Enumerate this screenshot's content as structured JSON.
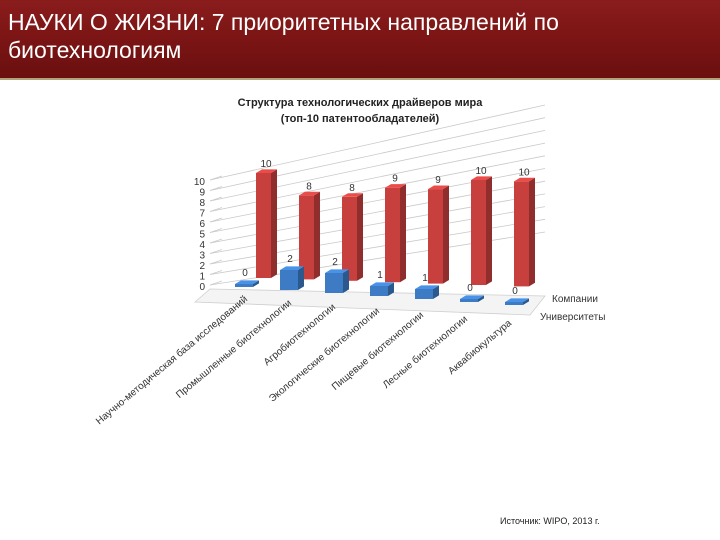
{
  "header": {
    "title": "НАУКИ О ЖИЗНИ: 7 приоритетных направлений по биотехнологиям"
  },
  "chart_title": {
    "line1": "Структура технологических драйверов мира",
    "line2": "(топ-10 патентообладателей)"
  },
  "source": "Источник: WIPO, 2013 г.",
  "colors": {
    "header_bg": "#7a1414",
    "companies": "#c8403e",
    "universities": "#3d7cc4"
  },
  "chart_data": {
    "type": "bar",
    "style": "3d-clustered",
    "categories": [
      "Научно-методическая база исследований",
      "Промышленные биотехнологии",
      "Агробиотехнологии",
      "Экологические биотехнологии",
      "Пищевые биотехнологии",
      "Лесные биотехнологии",
      "Аквабиокультура"
    ],
    "series": [
      {
        "name": "Компании",
        "values": [
          10,
          8,
          8,
          9,
          9,
          10,
          10
        ]
      },
      {
        "name": "Университеты",
        "values": [
          0,
          2,
          2,
          1,
          1,
          0,
          0
        ]
      }
    ],
    "y_ticks": [
      "0",
      "1",
      "2",
      "3",
      "4",
      "5",
      "6",
      "7",
      "8",
      "9",
      "10"
    ],
    "ylim": [
      0,
      10
    ],
    "grid": true,
    "legend_position": "right"
  }
}
